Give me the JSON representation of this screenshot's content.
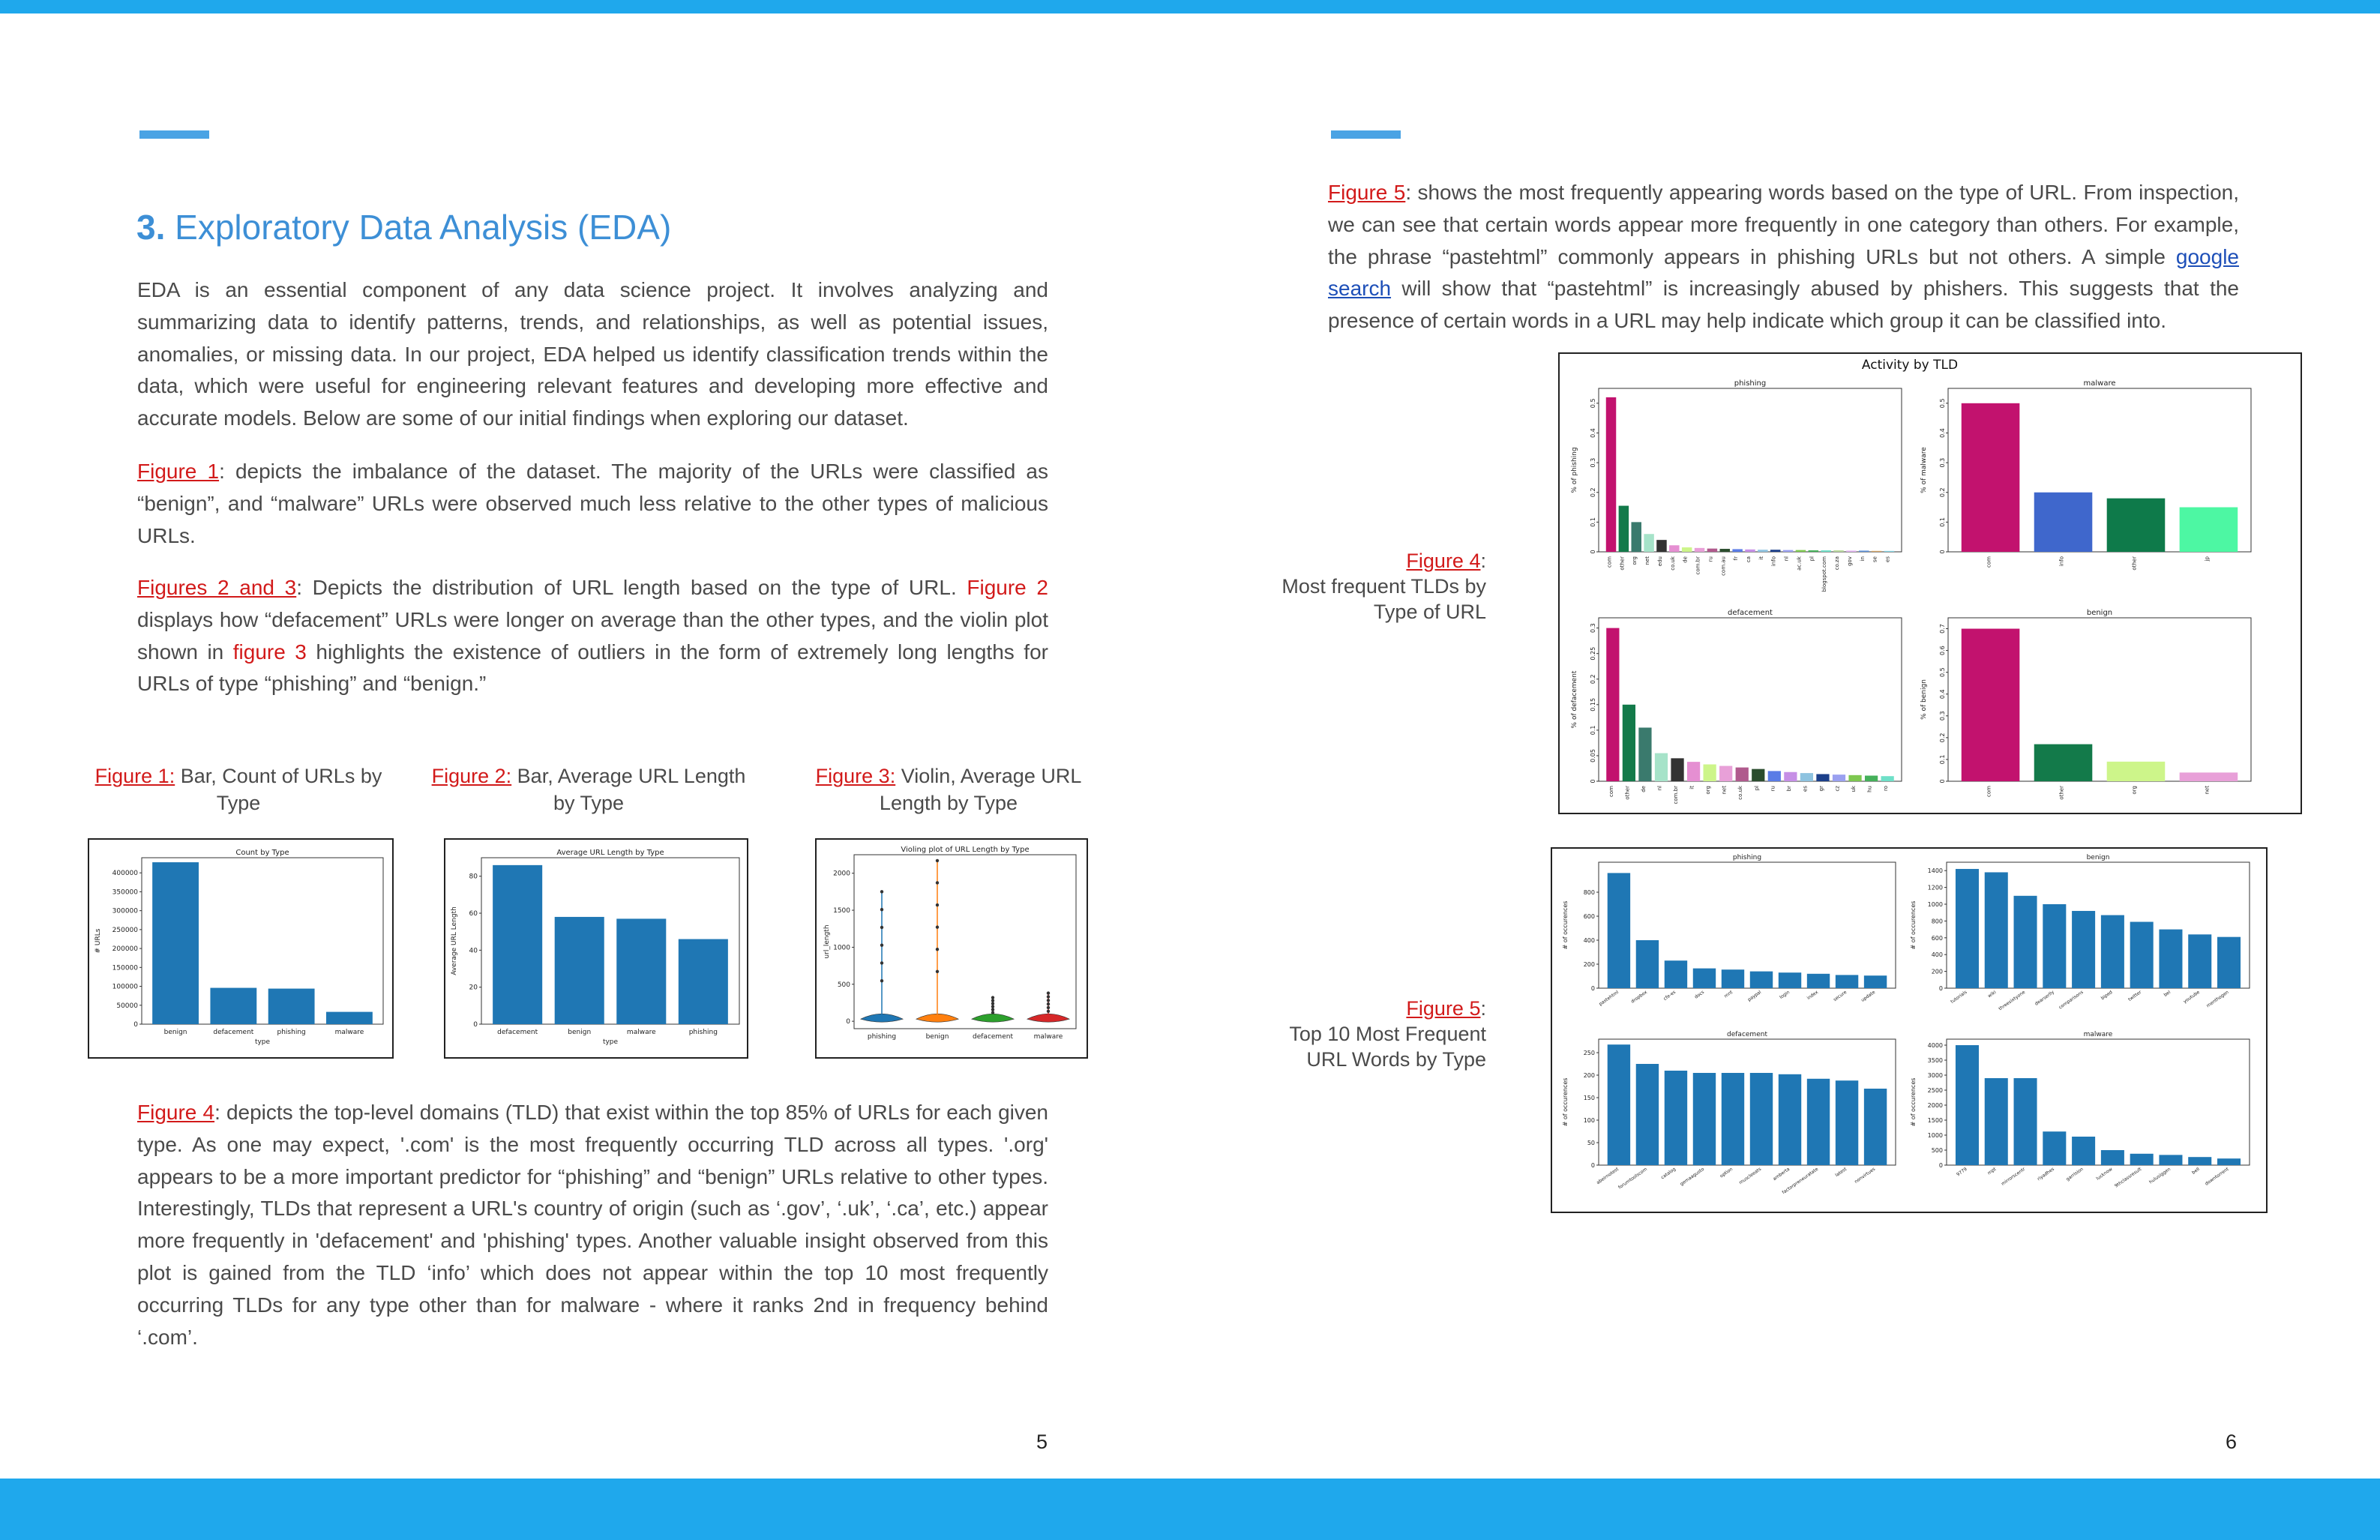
{
  "colors": {
    "accent": "#1fa8ec",
    "heading": "#3d8fd6",
    "ref": "#d21a1a",
    "bar": "#1f77b4"
  },
  "page5": {
    "title_num": "3.",
    "title_text": " Exploratory Data Analysis (EDA)",
    "intro": "EDA is an essential component of any data science project. It involves analyzing and summarizing data to identify patterns, trends, and relationships, as well as potential issues, anomalies, or missing data. In our project, EDA helped us identify classification trends within the data, which were useful for engineering relevant features and developing more effective and accurate models. Below are some of our initial findings when exploring our dataset.",
    "p1_ref": "Figure 1",
    "p1_text": ": depicts the imbalance of the dataset. The majority of the URLs were classified as “benign”, and “malware” URLs were observed much less relative to the other types of malicious URLs.",
    "p2_ref": "Figures 2 and 3",
    "p2_a": ": Depicts the distribution of URL length based on the type of URL. ",
    "p2_ref2": "Figure 2",
    "p2_b": " displays how “defacement” URLs were longer on average than the other types, and the violin plot shown in ",
    "p2_ref3": "figure 3",
    "p2_c": " highlights the existence of outliers in the form of extremely long lengths for URLs of type “phishing” and “benign.”",
    "fig1_ref": "Figure 1:",
    "fig1_cap": " Bar, Count of URLs by Type",
    "fig2_ref": "Figure 2:",
    "fig2_cap": " Bar, Average URL Length by Type",
    "fig3_ref": "Figure 3:",
    "fig3_cap": " Violin, Average URL Length by Type",
    "p3_ref": "Figure 4",
    "p3_text": ": depicts the top-level domains (TLD) that exist within the top 85% of URLs for each given type. As one may expect, '.com' is the most frequently occurring TLD across all types. '.org' appears to be a more important predictor for “phishing” and “benign” URLs relative to other types. Interestingly, TLDs that represent a URL's country of origin (such as ‘.gov’, ‘.uk’, ‘.ca’, etc.) appear more frequently in 'defacement' and 'phishing' types. Another valuable insight observed from this plot is gained from the TLD ‘info’ which does not appear within the top 10 most frequently occurring TLDs for any type other than for malware - where it ranks 2nd in frequency behind ‘.com’.",
    "page_number": "5"
  },
  "page6": {
    "p1_ref": "Figure 5",
    "p1_a": ": shows the most frequently appearing words based on the type of URL. From inspection, we can see that certain words appear more frequently in one category than others. For example, the phrase “pastehtml” commonly appears in phishing URLs but not others. A simple ",
    "p1_link": "google search",
    "p1_b": " will show that “pastehtml” is increasingly abused by phishers. This suggests that the presence of certain words in a URL may help indicate which group it can be classified into.",
    "fig4_ref": "Figure 4",
    "fig4_colon": ":",
    "fig4_cap": "Most frequent TLDs by Type of URL",
    "fig5_ref": "Figure 5",
    "fig5_colon": ":",
    "fig5_cap": "Top 10 Most Frequent URL Words by Type",
    "page_number": "6"
  },
  "chart_data": [
    {
      "id": "fig1",
      "type": "bar",
      "title": "Count by Type",
      "xlabel": "type",
      "ylabel": "# URLs",
      "categories": [
        "benign",
        "defacement",
        "phishing",
        "malware"
      ],
      "values": [
        428000,
        96000,
        94000,
        32500
      ],
      "ylim": [
        0,
        440000
      ],
      "yticks": [
        0,
        50000,
        100000,
        150000,
        200000,
        250000,
        300000,
        350000,
        400000
      ]
    },
    {
      "id": "fig2",
      "type": "bar",
      "title": "Average URL Length by Type",
      "xlabel": "type",
      "ylabel": "Average URL Length",
      "categories": [
        "defacement",
        "benign",
        "malware",
        "phishing"
      ],
      "values": [
        86,
        58,
        57,
        46
      ],
      "ylim": [
        0,
        90
      ],
      "yticks": [
        0,
        20,
        40,
        60,
        80
      ]
    },
    {
      "id": "fig3",
      "type": "violin",
      "title": "Violing plot of URL Length by Type",
      "ylabel": "url_length",
      "categories": [
        "phishing",
        "benign",
        "defacement",
        "malware"
      ],
      "colors": [
        "#1f77b4",
        "#ff7f0e",
        "#2ca02c",
        "#d62728"
      ],
      "ylim": [
        -100,
        2250
      ],
      "yticks": [
        0,
        500,
        1000,
        1500,
        2000
      ],
      "max_outlier": [
        1750,
        2170,
        320,
        380
      ]
    },
    {
      "id": "fig4",
      "title": "Activity by TLD",
      "type": "bar",
      "panels": [
        {
          "title": "phishing",
          "ylabel": "% of phishing",
          "ylim": [
            0,
            0.55
          ],
          "yticks": [
            0.0,
            0.1,
            0.2,
            0.3,
            0.4,
            0.5
          ],
          "categories": [
            "com",
            "other",
            "org",
            "net",
            "edu",
            "co.uk",
            "de",
            "com.br",
            "ru",
            "com.au",
            "fr",
            "ca",
            "it",
            "info",
            "nl",
            "ac.uk",
            "pl",
            "blogspot.com",
            "co.za",
            "gov",
            "in",
            "se",
            "es"
          ],
          "values": [
            0.52,
            0.155,
            0.1,
            0.06,
            0.04,
            0.022,
            0.015,
            0.013,
            0.011,
            0.01,
            0.009,
            0.008,
            0.007,
            0.007,
            0.006,
            0.006,
            0.005,
            0.005,
            0.005,
            0.004,
            0.004,
            0.003,
            0.003
          ]
        },
        {
          "title": "malware",
          "ylabel": "% of malware",
          "ylim": [
            0,
            0.55
          ],
          "yticks": [
            0.0,
            0.1,
            0.2,
            0.3,
            0.4,
            0.5
          ],
          "categories": [
            "com",
            "info",
            "other",
            "jp"
          ],
          "values": [
            0.5,
            0.2,
            0.18,
            0.15
          ]
        },
        {
          "title": "defacement",
          "ylabel": "% of defacement",
          "ylim": [
            0,
            0.32
          ],
          "yticks": [
            0.0,
            0.05,
            0.1,
            0.15,
            0.2,
            0.25,
            0.3
          ],
          "categories": [
            "com",
            "other",
            "de",
            "nl",
            "com.br",
            "it",
            "org",
            "net",
            "co.uk",
            "pl",
            "ru",
            "br",
            "es",
            "gr",
            "cz",
            "uk",
            "hu",
            "ro"
          ],
          "values": [
            0.3,
            0.15,
            0.105,
            0.055,
            0.045,
            0.038,
            0.033,
            0.03,
            0.027,
            0.024,
            0.02,
            0.018,
            0.016,
            0.014,
            0.013,
            0.012,
            0.011,
            0.01
          ]
        },
        {
          "title": "benign",
          "ylabel": "% of benign",
          "ylim": [
            0,
            0.75
          ],
          "yticks": [
            0.0,
            0.1,
            0.2,
            0.3,
            0.4,
            0.5,
            0.6,
            0.7
          ],
          "categories": [
            "com",
            "other",
            "org",
            "net"
          ],
          "values": [
            0.7,
            0.17,
            0.09,
            0.04
          ]
        }
      ]
    },
    {
      "id": "fig5",
      "type": "bar",
      "panels": [
        {
          "title": "phishing",
          "ylabel": "# of occurences",
          "ylim": [
            0,
            1050
          ],
          "yticks": [
            0,
            200,
            400,
            600,
            800
          ],
          "categories": [
            "pastehtml",
            "dropbox",
            "cfe-es",
            "docs",
            "mnt",
            "paypal",
            "login",
            "index",
            "secure",
            "update"
          ],
          "values": [
            960,
            400,
            230,
            165,
            155,
            140,
            130,
            120,
            110,
            105
          ]
        },
        {
          "title": "benign",
          "ylabel": "# of occurences",
          "ylim": [
            0,
            1500
          ],
          "yticks": [
            0,
            200,
            400,
            600,
            800,
            1000,
            1200,
            1400
          ],
          "categories": [
            "tutorials",
            "wiki",
            "threesixtyone",
            "dearserlly",
            "comparisons",
            "biped",
            "twitter",
            "bel",
            "youtube",
            "menthogen"
          ],
          "values": [
            1420,
            1380,
            1100,
            1000,
            920,
            870,
            790,
            700,
            640,
            610
          ]
        },
        {
          "title": "defacement",
          "ylabel": "# of occurences",
          "ylim": [
            0,
            280
          ],
          "yticks": [
            0,
            50,
            100,
            150,
            200,
            250
          ],
          "categories": [
            "abeirnotest",
            "forumtoolscom",
            "catalog",
            "gemaagusto",
            "option",
            "muscleeats",
            "amberta",
            "factorpreneuratate",
            "latest",
            "nonvirtues"
          ],
          "values": [
            268,
            225,
            210,
            205,
            205,
            205,
            202,
            192,
            188,
            170
          ]
        },
        {
          "title": "malware",
          "ylabel": "# of occurences",
          "ylim": [
            0,
            4200
          ],
          "yticks": [
            0,
            500,
            1000,
            1500,
            2000,
            2500,
            3000,
            3500,
            4000
          ],
          "categories": [
            "9779",
            "mpt",
            "mirrorscentr",
            "riyadhes",
            "garrision",
            "lucknow",
            "9thclassresult",
            "hulusiggen",
            "bell",
            "downtorrent"
          ],
          "values": [
            4000,
            2900,
            2900,
            1120,
            950,
            500,
            380,
            340,
            270,
            220
          ]
        }
      ]
    }
  ]
}
